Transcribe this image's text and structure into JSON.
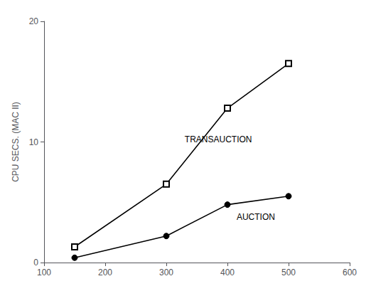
{
  "chart_data": {
    "type": "line",
    "ylabel": "CPU SECS. (MAC II)",
    "x": [
      150,
      300,
      400,
      500
    ],
    "series": [
      {
        "values": [
          1.3,
          6.5,
          12.8,
          16.5
        ],
        "color": "#000000",
        "marker": "square"
      },
      {
        "values": [
          0.4,
          2.2,
          4.8,
          5.5
        ],
        "color": "#000000",
        "marker": "circle"
      }
    ],
    "annotations": [
      {
        "text": "TRANSAUCTION",
        "x": 330,
        "y": 10.2,
        "color": "#000000"
      },
      {
        "text": "AUCTION",
        "x": 415,
        "y": 3.8,
        "color": "#000000"
      }
    ],
    "xlim": [
      100,
      600
    ],
    "xticks": [
      100,
      200,
      300,
      400,
      500,
      600
    ],
    "ylim": [
      0,
      20
    ],
    "yticks": [
      0,
      10,
      20
    ],
    "grid": false
  }
}
